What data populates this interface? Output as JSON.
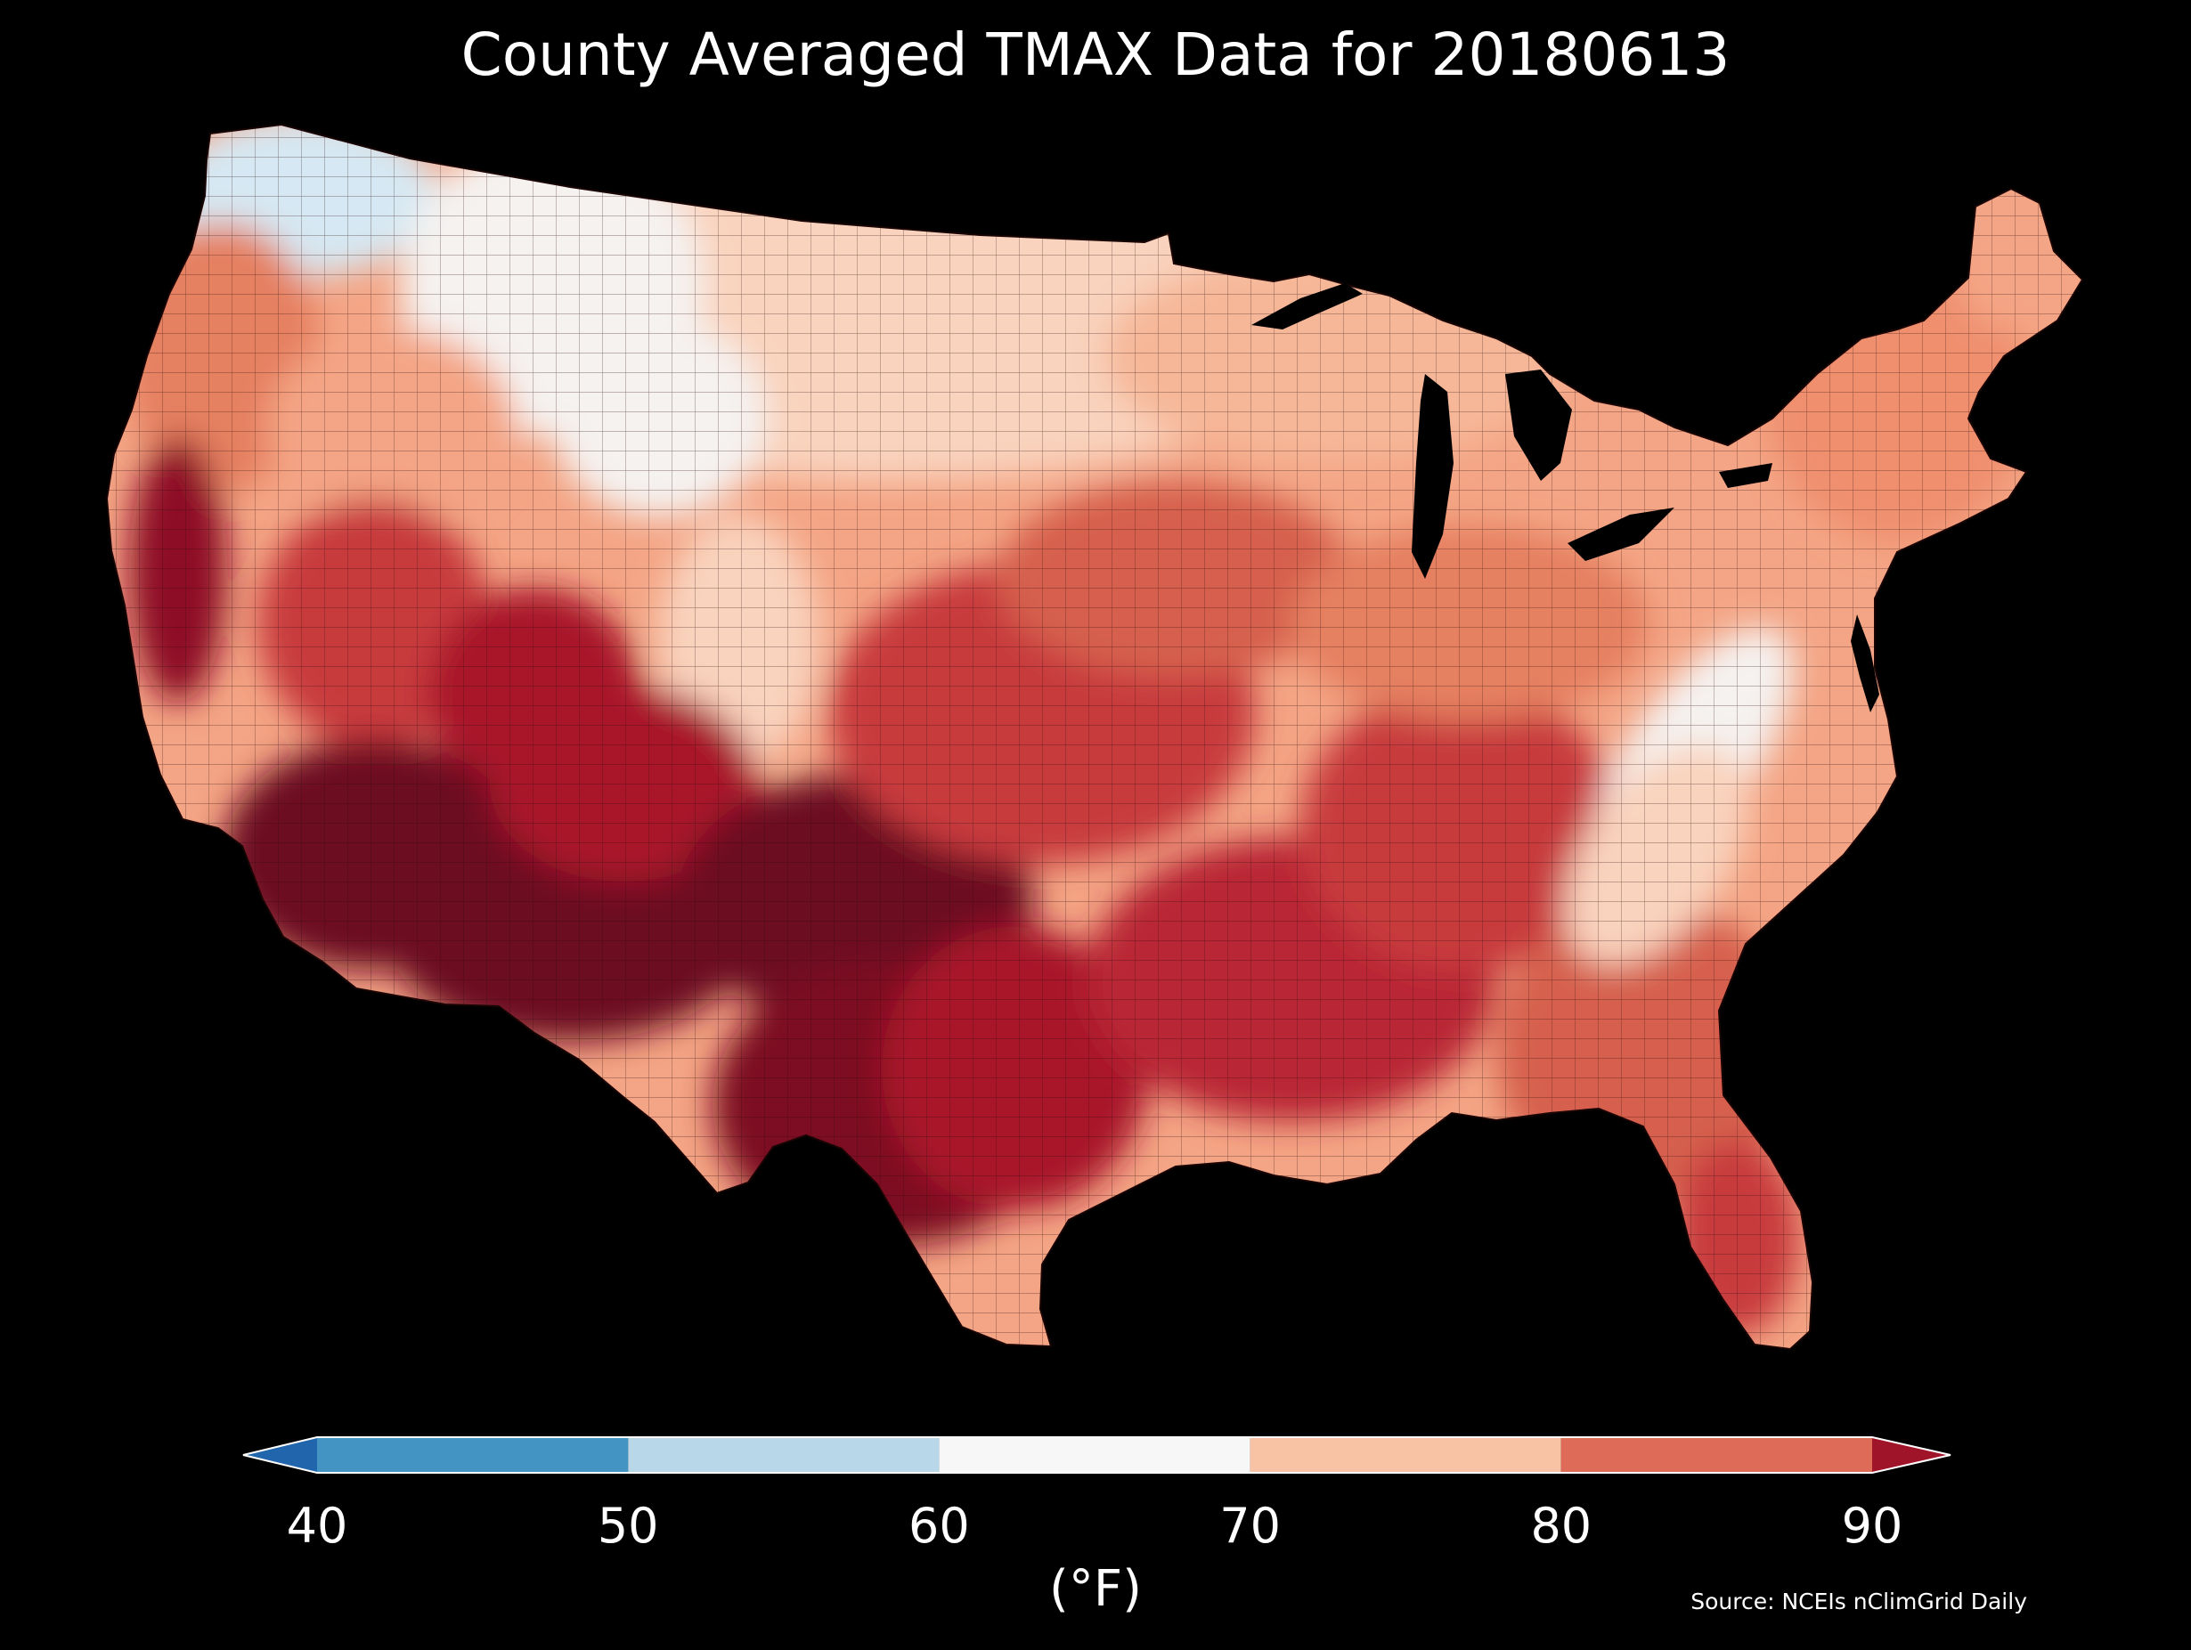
{
  "title": "County Averaged TMAX Data for 20180613",
  "colorbar": {
    "unit_label": "(°F)",
    "ticks": [
      "40",
      "50",
      "60",
      "70",
      "80",
      "90"
    ],
    "bins": [
      {
        "from": 40,
        "to": 50,
        "color": "#4393c3"
      },
      {
        "from": 50,
        "to": 60,
        "color": "#b8d8ea"
      },
      {
        "from": 60,
        "to": 70,
        "color": "#f7f7f7"
      },
      {
        "from": 70,
        "to": 80,
        "color": "#f8c2a4"
      },
      {
        "from": 80,
        "to": 90,
        "color": "#dd6b58"
      }
    ],
    "under_color": "#2166ac",
    "over_color": "#a0142a",
    "outline_color": "#ffffff"
  },
  "source": "Source: NCEIs nClimGrid Daily",
  "map": {
    "region": "contiguous-united-states",
    "feature": "county-polygons",
    "background": "#000000",
    "lakes_color": "#000000",
    "palette": {
      "cool_blue": "#d6e8f3",
      "near_white": "#f5f2f0",
      "pale_peach": "#f9d3bd",
      "peach": "#f4a585",
      "salmon": "#e58060",
      "red": "#c83a3c",
      "dark_red": "#a9172b",
      "deepest_red": "#6d0a20"
    }
  }
}
